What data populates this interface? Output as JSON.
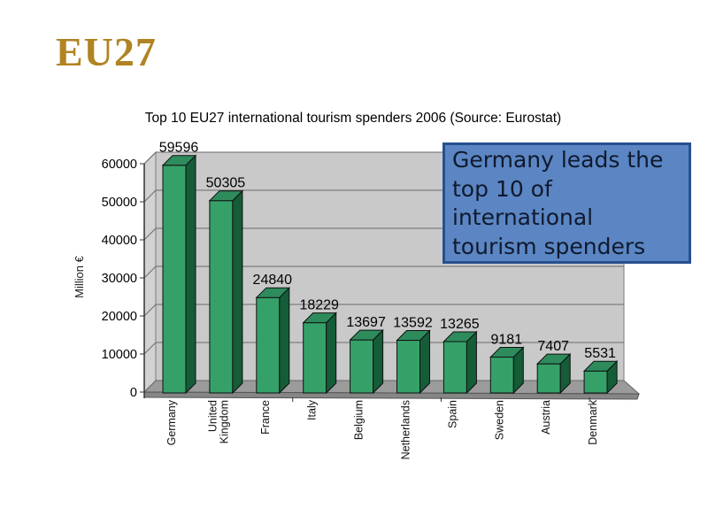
{
  "slide": {
    "title": "EU27",
    "title_color": "#B08423",
    "background_color": "#FFFFFF"
  },
  "callout": {
    "text": "Germany leads the top 10 of international tourism spenders",
    "fill_color": "#5B86C3",
    "border_color": "#26508F",
    "text_color": "#10192E"
  },
  "chart_data": {
    "type": "bar",
    "style": "3d-column",
    "title": "Top 10 EU27 international tourism spenders 2006 (Source: Eurostat)",
    "xlabel": "",
    "ylabel": "Million €",
    "ylim": [
      0,
      60000
    ],
    "yticks": [
      0,
      10000,
      20000,
      30000,
      40000,
      50000,
      60000
    ],
    "grid": true,
    "legend": false,
    "data_labels": true,
    "categories": [
      "Germany",
      "United\nKingdom",
      "France",
      "Italy",
      "Belgium",
      "Netherlands",
      "Spain",
      "Sweden",
      "Austria",
      "Denmark"
    ],
    "values": [
      59596,
      50305,
      24840,
      18229,
      13697,
      13592,
      13265,
      9181,
      7407,
      5531
    ],
    "colors": {
      "bar_front": "#35A169",
      "bar_side": "#155C38",
      "bar_top": "#2E8B5C",
      "wall": "#C9C9C9",
      "left_wall": "#D2D2D2",
      "floor": "#9B9B9B",
      "floor_front": "#868686",
      "gridline": "#6A6A6A",
      "outline": "#101010",
      "axis": "#333333"
    }
  }
}
